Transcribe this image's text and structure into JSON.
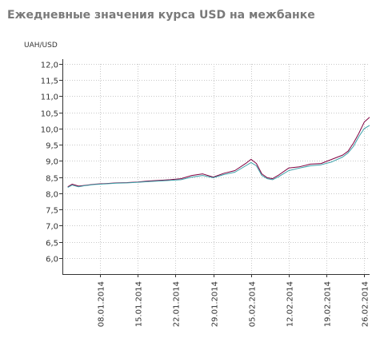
{
  "chart_data": {
    "type": "line",
    "title": "Ежедневные значения курса USD на межбанке",
    "ylabel": "UAH/USD",
    "xlabel": "",
    "ylim": [
      5.5,
      12.0
    ],
    "yticks": [
      {
        "value": 6.0,
        "label": "6,0"
      },
      {
        "value": 6.5,
        "label": "6,5"
      },
      {
        "value": 7.0,
        "label": "7,0"
      },
      {
        "value": 7.5,
        "label": "7,5"
      },
      {
        "value": 8.0,
        "label": "8,0"
      },
      {
        "value": 8.5,
        "label": "8,5"
      },
      {
        "value": 9.0,
        "label": "9,0"
      },
      {
        "value": 9.5,
        "label": "9,5"
      },
      {
        "value": 10.0,
        "label": "10,0"
      },
      {
        "value": 10.5,
        "label": "10,5"
      },
      {
        "value": 11.0,
        "label": "11,0"
      },
      {
        "value": 11.5,
        "label": "11,5"
      },
      {
        "value": 12.0,
        "label": "12,0"
      }
    ],
    "xlim": [
      0,
      57
    ],
    "xticks": [
      {
        "value": 7,
        "label": "08.01.2014"
      },
      {
        "value": 14,
        "label": "15.01.2014"
      },
      {
        "value": 21,
        "label": "22.01.2014"
      },
      {
        "value": 28,
        "label": "29.01.2014"
      },
      {
        "value": 35,
        "label": "05.02.2014"
      },
      {
        "value": 42,
        "label": "12.02.2014"
      },
      {
        "value": 49,
        "label": "19.02.2014"
      },
      {
        "value": 56,
        "label": "26.02.2014"
      }
    ],
    "grid": true,
    "legend": "none",
    "x": [
      1,
      1.8,
      3,
      4,
      6,
      8,
      10,
      12,
      14,
      16,
      18,
      20,
      22,
      24,
      26,
      28,
      30,
      32,
      34,
      35,
      36,
      37,
      38,
      39,
      40,
      42,
      44,
      46,
      48,
      50,
      52,
      53,
      54,
      55,
      56,
      57
    ],
    "series": [
      {
        "color": "#800040",
        "values": [
          8.2,
          8.28,
          8.22,
          8.24,
          8.28,
          8.3,
          8.32,
          8.33,
          8.35,
          8.38,
          8.4,
          8.42,
          8.45,
          8.55,
          8.6,
          8.5,
          8.62,
          8.7,
          8.92,
          9.05,
          8.92,
          8.6,
          8.48,
          8.45,
          8.55,
          8.78,
          8.82,
          8.9,
          8.92,
          9.05,
          9.18,
          9.3,
          9.55,
          9.85,
          10.2,
          10.35
        ]
      },
      {
        "color": "#3aa0a8",
        "values": [
          8.18,
          8.25,
          8.2,
          8.23,
          8.27,
          8.29,
          8.31,
          8.32,
          8.34,
          8.36,
          8.38,
          8.4,
          8.42,
          8.5,
          8.55,
          8.48,
          8.58,
          8.65,
          8.85,
          8.95,
          8.85,
          8.55,
          8.45,
          8.42,
          8.5,
          8.7,
          8.78,
          8.85,
          8.88,
          8.97,
          9.12,
          9.25,
          9.45,
          9.75,
          10.0,
          10.1
        ]
      }
    ]
  }
}
